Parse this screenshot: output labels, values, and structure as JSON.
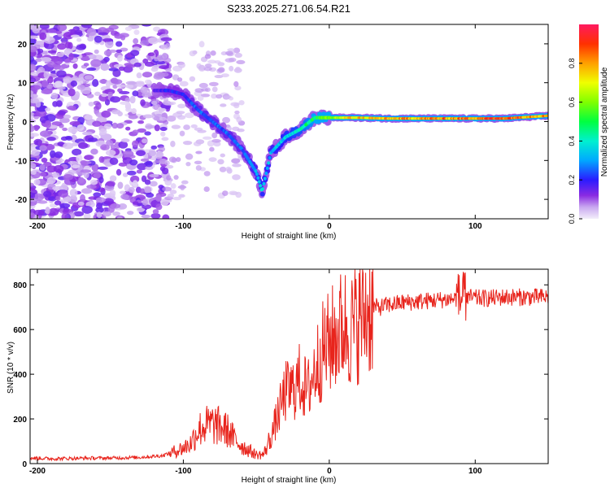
{
  "title": "S233.2025.271.06.54.R21",
  "chart_data": [
    {
      "type": "heatmap",
      "title": "S233.2025.271.06.54.R21",
      "xlabel": "Height of straight line (km)",
      "ylabel": "Frequency (Hz)",
      "xlim": [
        -205,
        150
      ],
      "ylim": [
        -25,
        25
      ],
      "xticks": [
        -200,
        -100,
        0,
        100
      ],
      "xtick_labels": [
        "-200",
        "-100",
        "0",
        "100"
      ],
      "yticks": [
        -20,
        -10,
        0,
        10,
        20
      ],
      "ytick_labels": [
        "-20",
        "-10",
        "0",
        "10",
        "20"
      ],
      "colorbar": {
        "label": "Normalized spectral amplitude",
        "range": [
          0,
          1
        ],
        "ticks": [
          0.0,
          0.2,
          0.4,
          0.6,
          0.8
        ],
        "tick_labels": [
          "0.0",
          "0.2",
          "0.4",
          "0.6",
          "0.8"
        ]
      },
      "ridge": {
        "x": [
          -120,
          -110,
          -100,
          -90,
          -80,
          -70,
          -60,
          -50,
          -46,
          -40,
          -30,
          -20,
          -10,
          0,
          10,
          20,
          40,
          60,
          80,
          100,
          120,
          150
        ],
        "y": [
          8,
          8,
          7,
          3,
          0,
          -3,
          -7,
          -13,
          -18,
          -8,
          -4,
          -2,
          1,
          1,
          1,
          1,
          0.8,
          0.8,
          0.8,
          0.8,
          0.8,
          1.5
        ],
        "amplitude": [
          0.15,
          0.2,
          0.2,
          0.25,
          0.25,
          0.25,
          0.25,
          0.3,
          0.35,
          0.3,
          0.35,
          0.4,
          0.5,
          0.55,
          0.7,
          0.75,
          0.75,
          0.8,
          0.8,
          0.85,
          0.9,
          0.8
        ]
      }
    },
    {
      "type": "line",
      "xlabel": "Height of straight line (km)",
      "ylabel": "SNR (10 * v/v)",
      "xlim": [
        -205,
        150
      ],
      "ylim": [
        0,
        870
      ],
      "xticks": [
        -200,
        -100,
        0,
        100
      ],
      "xtick_labels": [
        "-200",
        "-100",
        "0",
        "100"
      ],
      "yticks": [
        0,
        200,
        400,
        600,
        800
      ],
      "ytick_labels": [
        "0",
        "200",
        "400",
        "600",
        "800"
      ],
      "series": [
        {
          "name": "SNR",
          "color": "#e8241c",
          "x": [
            -205,
            -190,
            -170,
            -150,
            -130,
            -115,
            -108,
            -100,
            -95,
            -90,
            -85,
            -80,
            -75,
            -70,
            -65,
            -60,
            -55,
            -50,
            -45,
            -40,
            -35,
            -30,
            -25,
            -20,
            -15,
            -10,
            -5,
            0,
            5,
            10,
            15,
            20,
            25,
            30,
            35,
            40,
            50,
            60,
            70,
            80,
            90,
            95,
            100,
            110,
            120,
            130,
            140,
            150
          ],
          "y": [
            25,
            22,
            24,
            25,
            28,
            35,
            50,
            70,
            90,
            150,
            170,
            175,
            165,
            150,
            110,
            80,
            60,
            40,
            40,
            120,
            220,
            320,
            330,
            380,
            320,
            420,
            500,
            540,
            580,
            620,
            600,
            640,
            680,
            700,
            700,
            710,
            720,
            725,
            730,
            735,
            740,
            745,
            740,
            740,
            745,
            745,
            745,
            745
          ]
        }
      ]
    }
  ]
}
